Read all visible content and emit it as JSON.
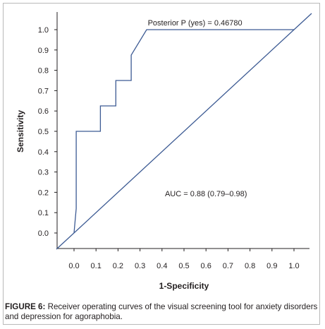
{
  "chart_data": {
    "type": "line",
    "title": "",
    "xlabel": "1-Specificity",
    "ylabel": "Sensitivity",
    "xlim": [
      0.0,
      1.0
    ],
    "ylim": [
      0.0,
      1.0
    ],
    "x_ticks": [
      "0.0",
      "0.1",
      "0.2",
      "0.3",
      "0.4",
      "0.5",
      "0.6",
      "0.7",
      "0.8",
      "0.9",
      "1.0"
    ],
    "y_ticks": [
      "0.0",
      "0.1",
      "0.2",
      "0.3",
      "0.4",
      "0.5",
      "0.6",
      "0.7",
      "0.8",
      "0.9",
      "1.0"
    ],
    "grid": false,
    "legend": "none",
    "line_color": "#3c5a93",
    "series": [
      {
        "x": [
          0.0,
          0.01,
          0.01,
          0.12,
          0.12,
          0.19,
          0.19,
          0.26,
          0.26,
          0.33,
          0.33,
          0.99,
          1.0
        ],
        "y": [
          0.0,
          0.12,
          0.5,
          0.5,
          0.625,
          0.625,
          0.75,
          0.75,
          0.875,
          1.0,
          1.0,
          1.0,
          1.0
        ]
      },
      {
        "x": [
          -0.08,
          1.08
        ],
        "y": [
          -0.08,
          1.08
        ]
      }
    ],
    "annotations": [
      {
        "text": "Posterior P (yes) = 0.46780",
        "x": 0.55,
        "y": 1.02
      },
      {
        "text": "AUC = 0.88 (0.79–0.98)",
        "x": 0.6,
        "y": 0.18
      }
    ]
  },
  "caption": {
    "label": "FIGURE 6:",
    "text": " Receiver operating curves of the visual screening tool for anxiety disorders and depression for agoraphobia."
  }
}
